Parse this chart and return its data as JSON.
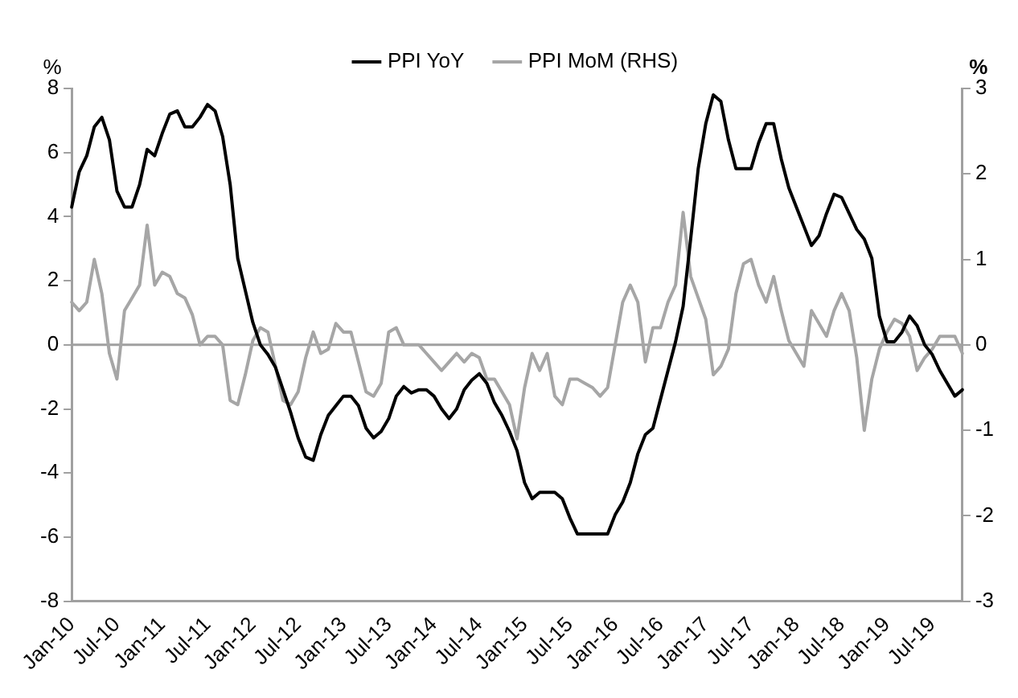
{
  "chart_data": {
    "type": "line",
    "ylabel": "%",
    "y2label": "%",
    "categories": [
      "Jan-10",
      null,
      null,
      null,
      null,
      null,
      "Jul-10",
      null,
      null,
      null,
      null,
      null,
      "Jan-11",
      null,
      null,
      null,
      null,
      null,
      "Jul-11",
      null,
      null,
      null,
      null,
      null,
      "Jan-12",
      null,
      null,
      null,
      null,
      null,
      "Jul-12",
      null,
      null,
      null,
      null,
      null,
      "Jan-13",
      null,
      null,
      null,
      null,
      null,
      "Jul-13",
      null,
      null,
      null,
      null,
      null,
      "Jan-14",
      null,
      null,
      null,
      null,
      null,
      "Jul-14",
      null,
      null,
      null,
      null,
      null,
      "Jan-15",
      null,
      null,
      null,
      null,
      null,
      "Jul-15",
      null,
      null,
      null,
      null,
      null,
      "Jan-16",
      null,
      null,
      null,
      null,
      null,
      "Jul-16",
      null,
      null,
      null,
      null,
      null,
      "Jan-17",
      null,
      null,
      null,
      null,
      null,
      "Jul-17",
      null,
      null,
      null,
      null,
      null,
      "Jan-18",
      null,
      null,
      null,
      null,
      null,
      "Jul-18",
      null,
      null,
      null,
      null,
      null,
      "Jan-19",
      null,
      null,
      null,
      null,
      null,
      "Jul-19",
      null,
      null,
      null,
      null
    ],
    "series": [
      {
        "name": "PPI YoY",
        "color": "#000000",
        "values": [
          4.3,
          5.4,
          5.9,
          6.8,
          7.1,
          6.4,
          4.8,
          4.3,
          4.3,
          5.0,
          6.1,
          5.9,
          6.6,
          7.2,
          7.3,
          6.8,
          6.8,
          7.1,
          7.5,
          7.3,
          6.5,
          5.0,
          2.7,
          1.7,
          0.7,
          0.0,
          -0.3,
          -0.7,
          -1.4,
          -2.1,
          -2.9,
          -3.5,
          -3.6,
          -2.8,
          -2.2,
          -1.9,
          -1.6,
          -1.6,
          -1.9,
          -2.6,
          -2.9,
          -2.7,
          -2.3,
          -1.6,
          -1.3,
          -1.5,
          -1.4,
          -1.4,
          -1.6,
          -2.0,
          -2.3,
          -2.0,
          -1.4,
          -1.1,
          -0.9,
          -1.2,
          -1.8,
          -2.2,
          -2.7,
          -3.3,
          -4.3,
          -4.8,
          -4.6,
          -4.6,
          -4.6,
          -4.8,
          -5.4,
          -5.9,
          -5.9,
          -5.9,
          -5.9,
          -5.9,
          -5.3,
          -4.9,
          -4.3,
          -3.4,
          -2.8,
          -2.6,
          -1.7,
          -0.8,
          0.1,
          1.2,
          3.3,
          5.5,
          6.9,
          7.8,
          7.6,
          6.4,
          5.5,
          5.5,
          5.5,
          6.3,
          6.9,
          6.9,
          5.8,
          4.9,
          4.3,
          3.7,
          3.1,
          3.4,
          4.1,
          4.7,
          4.6,
          4.1,
          3.6,
          3.3,
          2.7,
          0.9,
          0.1,
          0.1,
          0.4,
          0.9,
          0.6,
          0.0,
          -0.3,
          -0.8,
          -1.2,
          -1.6,
          -1.4
        ]
      },
      {
        "name": "PPI MoM (RHS)",
        "color": "#a6a6a6",
        "axis": "y2",
        "values": [
          0.5,
          0.4,
          0.5,
          1.0,
          0.6,
          -0.1,
          -0.4,
          0.4,
          0.55,
          0.7,
          1.4,
          0.7,
          0.85,
          0.8,
          0.6,
          0.55,
          0.35,
          0.0,
          0.1,
          0.1,
          0.0,
          -0.65,
          -0.7,
          -0.35,
          0.05,
          0.2,
          0.15,
          -0.25,
          -0.65,
          -0.7,
          -0.55,
          -0.15,
          0.15,
          -0.1,
          -0.05,
          0.25,
          0.15,
          0.15,
          -0.2,
          -0.55,
          -0.6,
          -0.45,
          0.15,
          0.2,
          0.0,
          0.0,
          0.0,
          -0.1,
          -0.2,
          -0.3,
          -0.2,
          -0.1,
          -0.2,
          -0.1,
          -0.15,
          -0.4,
          -0.4,
          -0.55,
          -0.7,
          -1.1,
          -0.5,
          -0.1,
          -0.3,
          -0.1,
          -0.6,
          -0.7,
          -0.4,
          -0.4,
          -0.45,
          -0.5,
          -0.6,
          -0.5,
          0.0,
          0.5,
          0.7,
          0.5,
          -0.2,
          0.2,
          0.2,
          0.5,
          0.7,
          1.55,
          0.8,
          0.55,
          0.3,
          -0.35,
          -0.25,
          -0.05,
          0.6,
          0.95,
          1.0,
          0.7,
          0.5,
          0.8,
          0.4,
          0.05,
          -0.1,
          -0.25,
          0.4,
          0.25,
          0.1,
          0.4,
          0.6,
          0.4,
          -0.15,
          -1.0,
          -0.4,
          -0.05,
          0.15,
          0.3,
          0.25,
          0.1,
          -0.3,
          -0.15,
          -0.05,
          0.1,
          0.1,
          0.1,
          -0.1
        ]
      }
    ],
    "ylim": [
      -8,
      8
    ],
    "yticks": [
      -8,
      -6,
      -4,
      -2,
      0,
      2,
      4,
      6,
      8
    ],
    "y2lim": [
      -3,
      3
    ],
    "y2ticks": [
      -3,
      -2,
      -1,
      0,
      1,
      2,
      3
    ],
    "ref_lines": [
      {
        "axis": "y",
        "value": 0,
        "color": "#a0a0a0"
      }
    ],
    "legend": "top",
    "grid": false,
    "marker": "none",
    "line_style": "solid"
  }
}
